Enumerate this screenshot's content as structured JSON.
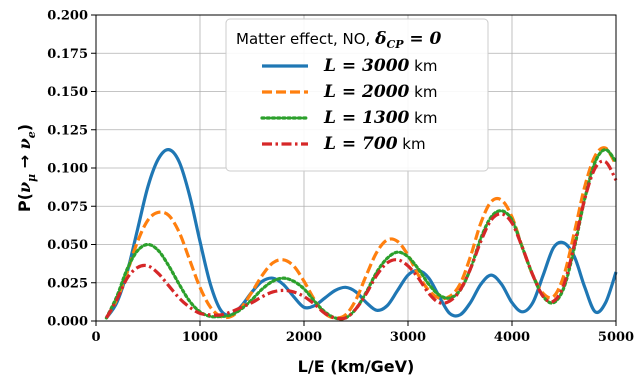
{
  "chart_data": {
    "type": "line",
    "xlabel": "L/E (km/GeV)",
    "ylabel": {
      "prefix": "P(",
      "nu": "ν",
      "sub1": "μ",
      "arrow": " → ",
      "sub2": "e",
      "suffix": ")"
    },
    "xlim": [
      0,
      5000
    ],
    "ylim": [
      0,
      0.2
    ],
    "xticks": [
      0,
      1000,
      2000,
      3000,
      4000,
      5000
    ],
    "xtick_labels": [
      "0",
      "1000",
      "2000",
      "3000",
      "4000",
      "5000"
    ],
    "yticks": [
      0,
      0.025,
      0.05,
      0.075,
      0.1,
      0.125,
      0.15,
      0.175,
      0.2
    ],
    "ytick_labels": [
      "0.000",
      "0.025",
      "0.050",
      "0.075",
      "0.100",
      "0.125",
      "0.150",
      "0.175",
      "0.200"
    ],
    "grid": true,
    "legend": {
      "placement": "top-center",
      "title_text": "Matter effect, NO, ",
      "title_math": "δ",
      "title_sub": "CP",
      "title_rest": " = 0"
    },
    "series": [
      {
        "name": "L = 3000 km",
        "label_math": "L",
        "label_value": " = 3000",
        "label_unit": " km",
        "color": "#1f77b4",
        "style": "solid",
        "x": [
          100,
          200,
          300,
          400,
          500,
          600,
          700,
          800,
          900,
          1000,
          1100,
          1200,
          1300,
          1400,
          1500,
          1600,
          1700,
          1800,
          1900,
          2000,
          2100,
          2200,
          2300,
          2400,
          2500,
          2600,
          2700,
          2800,
          2900,
          3000,
          3100,
          3200,
          3300,
          3400,
          3500,
          3600,
          3700,
          3800,
          3900,
          4000,
          4100,
          4200,
          4300,
          4400,
          4500,
          4600,
          4700,
          4800,
          4900,
          5000
        ],
        "y": [
          0.002,
          0.012,
          0.032,
          0.06,
          0.088,
          0.106,
          0.112,
          0.104,
          0.082,
          0.052,
          0.024,
          0.007,
          0.004,
          0.01,
          0.019,
          0.026,
          0.028,
          0.024,
          0.016,
          0.009,
          0.01,
          0.015,
          0.02,
          0.022,
          0.019,
          0.012,
          0.007,
          0.01,
          0.02,
          0.03,
          0.033,
          0.028,
          0.016,
          0.005,
          0.004,
          0.012,
          0.024,
          0.03,
          0.024,
          0.012,
          0.006,
          0.012,
          0.03,
          0.048,
          0.051,
          0.042,
          0.022,
          0.006,
          0.012,
          0.032
        ]
      },
      {
        "name": "L = 2000 km",
        "label_math": "L",
        "label_value": " = 2000",
        "label_unit": " km",
        "color": "#ff7f0e",
        "style": "dashed",
        "x": [
          100,
          200,
          300,
          400,
          500,
          600,
          700,
          800,
          900,
          1000,
          1100,
          1200,
          1300,
          1400,
          1500,
          1600,
          1700,
          1800,
          1900,
          2000,
          2100,
          2200,
          2300,
          2400,
          2500,
          2600,
          2700,
          2800,
          2900,
          3000,
          3100,
          3200,
          3300,
          3400,
          3500,
          3600,
          3700,
          3800,
          3900,
          4000,
          4100,
          4200,
          4300,
          4400,
          4500,
          4600,
          4700,
          4800,
          4900,
          5000
        ],
        "y": [
          0.002,
          0.014,
          0.032,
          0.052,
          0.066,
          0.071,
          0.069,
          0.058,
          0.04,
          0.022,
          0.009,
          0.003,
          0.003,
          0.009,
          0.019,
          0.03,
          0.038,
          0.04,
          0.036,
          0.026,
          0.014,
          0.005,
          0.002,
          0.004,
          0.014,
          0.03,
          0.045,
          0.053,
          0.052,
          0.043,
          0.03,
          0.02,
          0.015,
          0.016,
          0.024,
          0.042,
          0.064,
          0.078,
          0.079,
          0.068,
          0.048,
          0.03,
          0.018,
          0.016,
          0.03,
          0.058,
          0.088,
          0.108,
          0.113,
          0.102
        ]
      },
      {
        "name": "L = 1300 km",
        "label_math": "L",
        "label_value": " = 1300",
        "label_unit": " km",
        "color": "#2ca02c",
        "style": "dotted",
        "x": [
          100,
          200,
          300,
          400,
          500,
          600,
          700,
          800,
          900,
          1000,
          1100,
          1200,
          1300,
          1400,
          1500,
          1600,
          1700,
          1800,
          1900,
          2000,
          2100,
          2200,
          2300,
          2400,
          2500,
          2600,
          2700,
          2800,
          2900,
          3000,
          3100,
          3200,
          3300,
          3400,
          3500,
          3600,
          3700,
          3800,
          3900,
          4000,
          4100,
          4200,
          4300,
          4400,
          4500,
          4600,
          4700,
          4800,
          4900,
          5000
        ],
        "y": [
          0.002,
          0.016,
          0.034,
          0.046,
          0.05,
          0.046,
          0.036,
          0.024,
          0.013,
          0.006,
          0.003,
          0.003,
          0.004,
          0.008,
          0.014,
          0.021,
          0.026,
          0.028,
          0.026,
          0.021,
          0.013,
          0.006,
          0.002,
          0.002,
          0.008,
          0.019,
          0.032,
          0.041,
          0.045,
          0.042,
          0.034,
          0.024,
          0.017,
          0.015,
          0.02,
          0.034,
          0.054,
          0.068,
          0.072,
          0.066,
          0.048,
          0.03,
          0.016,
          0.012,
          0.022,
          0.048,
          0.08,
          0.104,
          0.112,
          0.104
        ]
      },
      {
        "name": "L = 700 km",
        "label_math": "L",
        "label_value": " = 700",
        "label_unit": " km",
        "color": "#d62728",
        "style": "dashdot",
        "x": [
          100,
          200,
          300,
          400,
          500,
          600,
          700,
          800,
          900,
          1000,
          1100,
          1200,
          1300,
          1400,
          1500,
          1600,
          1700,
          1800,
          1900,
          2000,
          2100,
          2200,
          2300,
          2400,
          2500,
          2600,
          2700,
          2800,
          2900,
          3000,
          3100,
          3200,
          3300,
          3400,
          3500,
          3600,
          3700,
          3800,
          3900,
          4000,
          4100,
          4200,
          4300,
          4400,
          4500,
          4600,
          4700,
          4800,
          4900,
          5000
        ],
        "y": [
          0.002,
          0.014,
          0.028,
          0.035,
          0.036,
          0.031,
          0.023,
          0.015,
          0.009,
          0.005,
          0.004,
          0.004,
          0.006,
          0.009,
          0.012,
          0.016,
          0.019,
          0.02,
          0.019,
          0.016,
          0.011,
          0.005,
          0.002,
          0.002,
          0.008,
          0.018,
          0.03,
          0.038,
          0.04,
          0.036,
          0.028,
          0.018,
          0.012,
          0.013,
          0.02,
          0.034,
          0.052,
          0.066,
          0.07,
          0.064,
          0.048,
          0.03,
          0.016,
          0.013,
          0.024,
          0.05,
          0.08,
          0.1,
          0.104,
          0.092
        ]
      }
    ]
  }
}
